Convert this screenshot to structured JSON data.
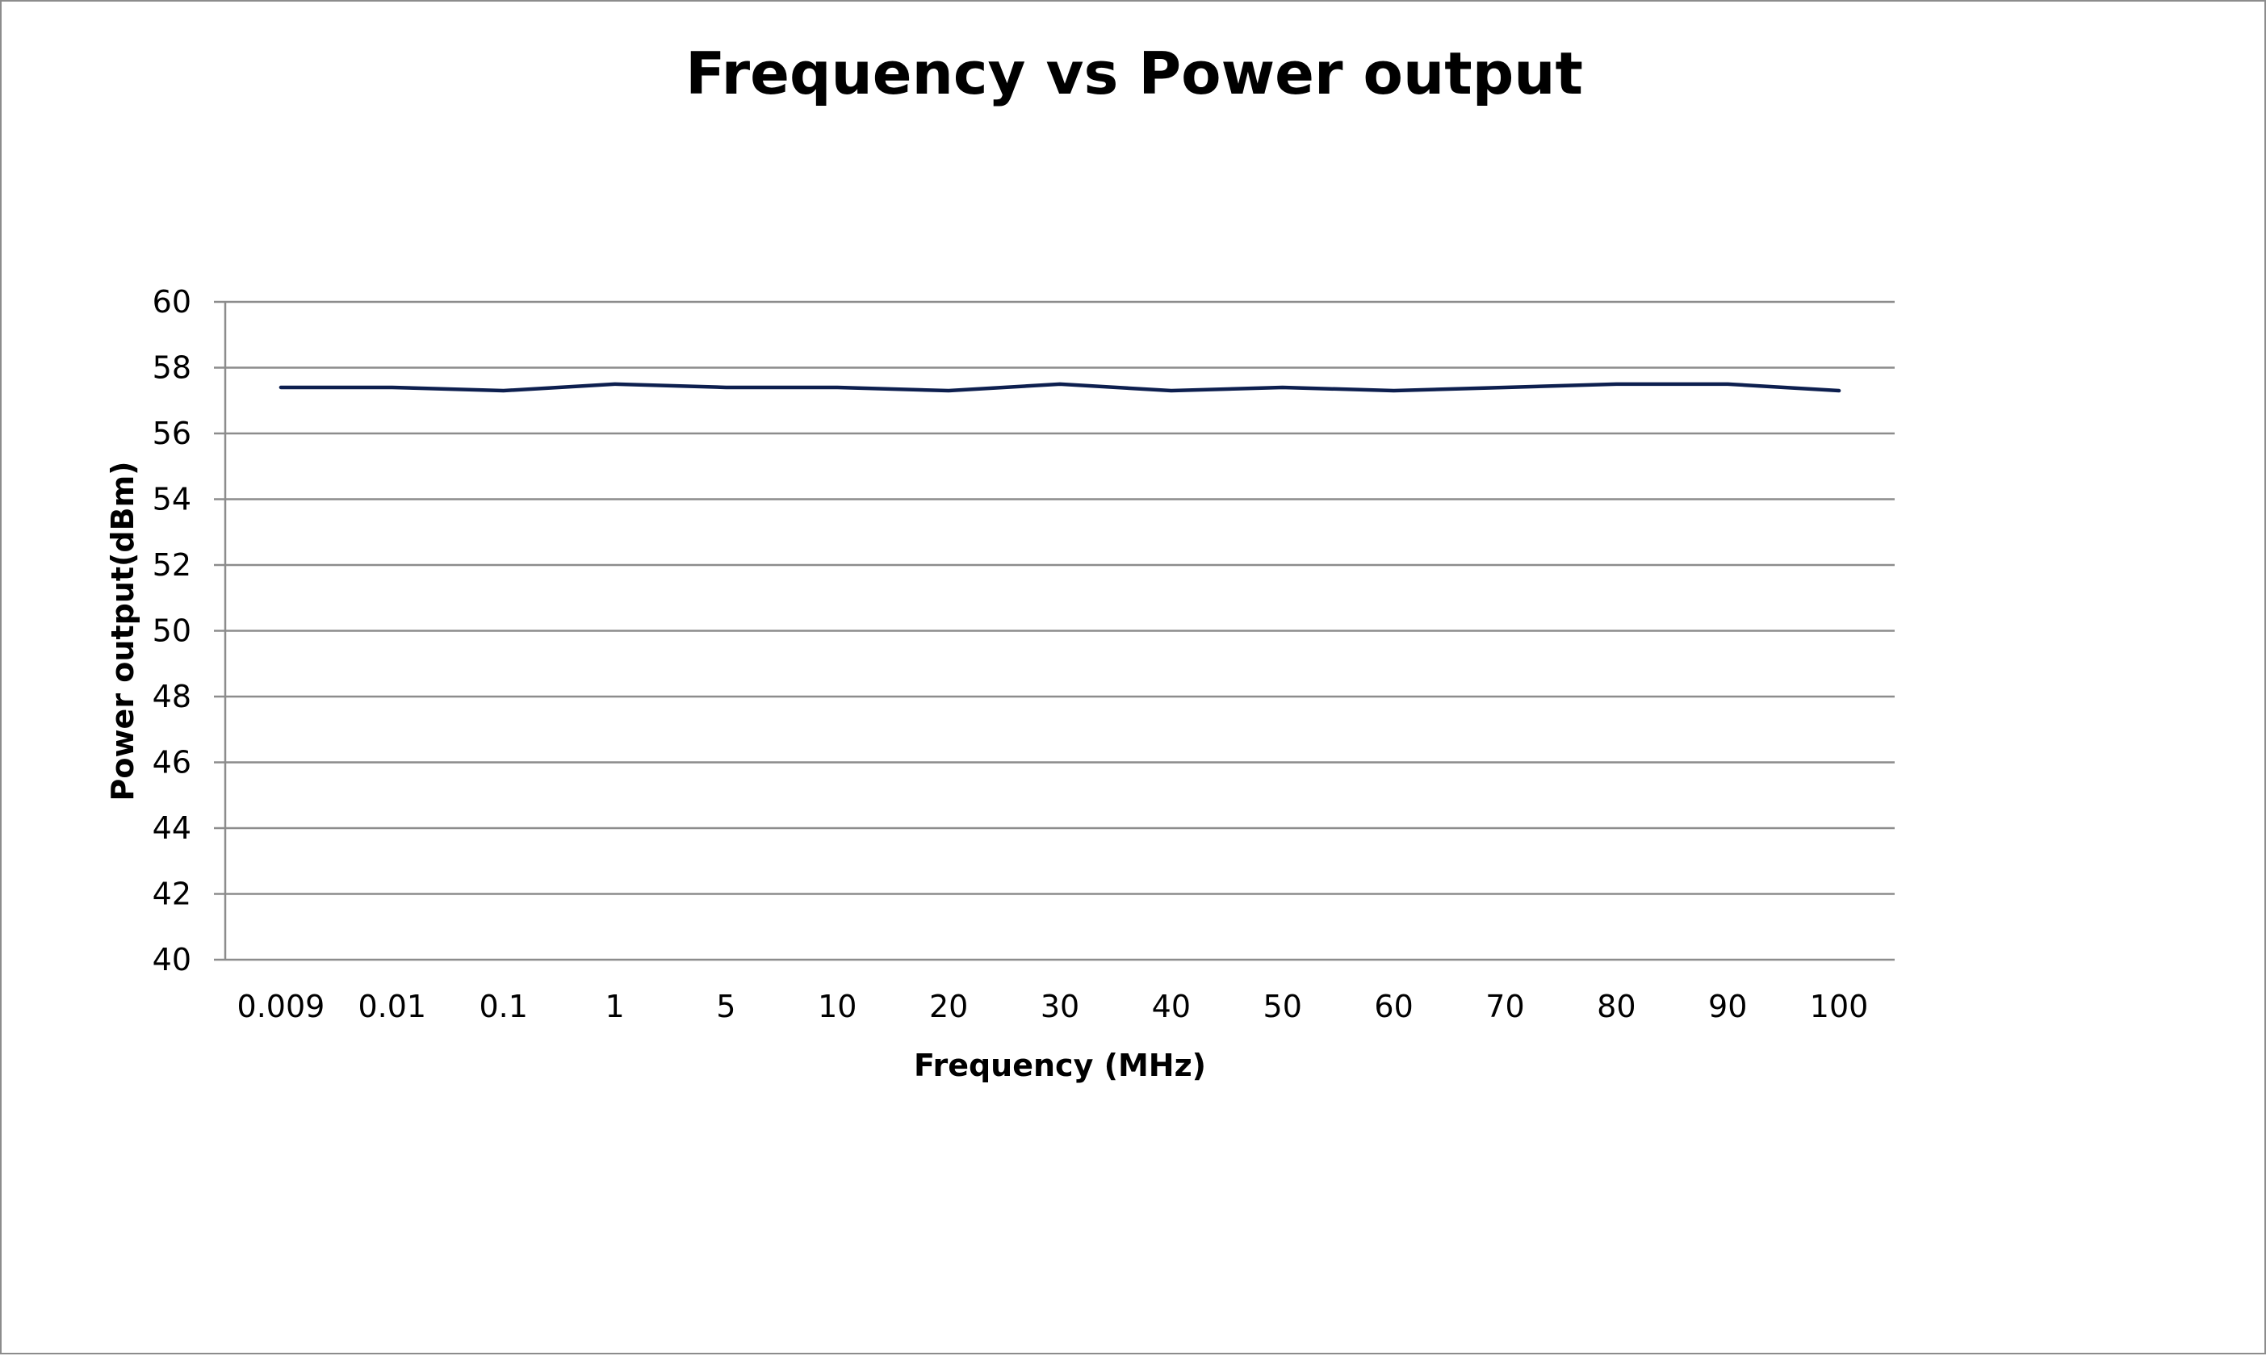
{
  "chart_data": {
    "type": "line",
    "title": "Frequency vs Power output",
    "xlabel": "Frequency (MHz)",
    "ylabel": "Power output(dBm)",
    "categories": [
      "0.009",
      "0.01",
      "0.1",
      "1",
      "5",
      "10",
      "20",
      "30",
      "40",
      "50",
      "60",
      "70",
      "80",
      "90",
      "100"
    ],
    "series": [
      {
        "values": [
          57.4,
          57.4,
          57.3,
          57.5,
          57.4,
          57.4,
          57.3,
          57.5,
          57.3,
          57.4,
          57.3,
          57.4,
          57.5,
          57.5,
          57.3
        ],
        "color": "#0d1f4f"
      }
    ],
    "ylim": [
      40,
      60
    ],
    "yticks": [
      40,
      42,
      44,
      46,
      48,
      50,
      52,
      54,
      56,
      58,
      60
    ],
    "grid": true,
    "legend": "none"
  }
}
